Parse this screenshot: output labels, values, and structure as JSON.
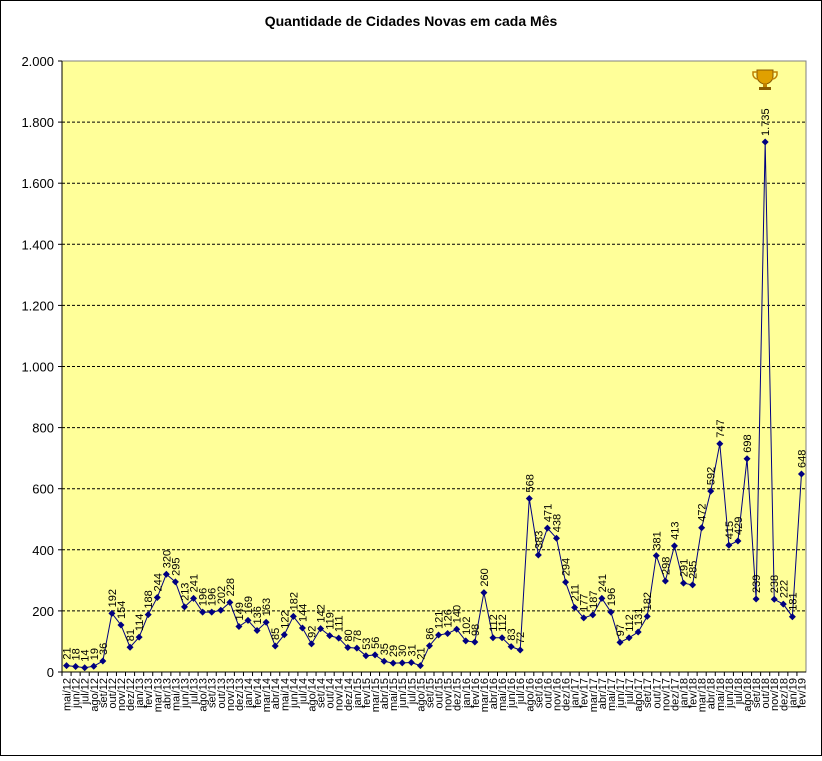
{
  "chart_data": {
    "type": "line",
    "title": "Quantidade de Cidades Novas em cada Mês",
    "categories": [
      "mai/12",
      "jun/12",
      "jul/12",
      "ago/12",
      "set/12",
      "out/12",
      "nov/12",
      "dez/12",
      "jan/13",
      "fev/13",
      "mar/13",
      "abr/13",
      "mai/13",
      "jun/13",
      "jul/13",
      "ago/13",
      "set/13",
      "out/13",
      "nov/13",
      "dez/13",
      "jan/14",
      "fev/14",
      "mar/14",
      "abr/14",
      "mai/14",
      "jun/14",
      "jul/14",
      "ago/14",
      "set/14",
      "out/14",
      "nov/14",
      "dez/14",
      "jan/15",
      "fev/15",
      "mar/15",
      "abr/15",
      "mai/15",
      "jun/15",
      "jul/15",
      "ago/15",
      "set/15",
      "out/15",
      "nov/15",
      "dez/15",
      "jan/16",
      "fev/16",
      "mar/16",
      "abr/16",
      "mai/16",
      "jun/16",
      "jul/16",
      "ago/16",
      "set/16",
      "out/16",
      "nov/16",
      "dez/16",
      "jan/17",
      "fev/17",
      "mar/17",
      "abr/17",
      "mai/17",
      "jun/17",
      "jul/17",
      "ago/17",
      "set/17",
      "out/17",
      "nov/17",
      "dez/17",
      "jan/18",
      "fev/18",
      "mar/18",
      "abr/18",
      "mai/18",
      "jun/18",
      "jul/18",
      "ago/18",
      "set/18",
      "out/18",
      "nov/18",
      "dez/18",
      "jan/19",
      "fev/19"
    ],
    "series": [
      {
        "color": "#000080",
        "values": [
          21,
          18,
          14,
          19,
          36,
          192,
          154,
          81,
          114,
          188,
          244,
          320,
          295,
          213,
          241,
          196,
          196,
          202,
          228,
          149,
          169,
          136,
          163,
          85,
          122,
          182,
          144,
          92,
          142,
          119,
          111,
          80,
          78,
          53,
          56,
          35,
          29,
          30,
          31,
          21,
          86,
          121,
          126,
          140,
          102,
          98,
          260,
          112,
          112,
          83,
          72,
          568,
          383,
          471,
          438,
          294,
          211,
          177,
          187,
          241,
          196,
          97,
          112,
          131,
          182,
          381,
          298,
          413,
          291,
          285,
          472,
          592,
          747,
          415,
          429,
          698,
          239,
          1735,
          238,
          222,
          181,
          648
        ],
        "value_labels": [
          "21",
          "18",
          "14",
          "19",
          "36",
          "192",
          "154",
          "81",
          "114",
          "188",
          "244",
          "320",
          "295",
          "213",
          "241",
          "196",
          "196",
          "202",
          "228",
          "149",
          "169",
          "136",
          "163",
          "85",
          "122",
          "182",
          "144",
          "92",
          "142",
          "119",
          "111",
          "80",
          "78",
          "53",
          "56",
          "35",
          "29",
          "30",
          "31",
          "21",
          "86",
          "121",
          "126",
          "140",
          "102",
          "98",
          "260",
          "112",
          "112",
          "83",
          "72",
          "568",
          "383",
          "471",
          "438",
          "294",
          "211",
          "177",
          "187",
          "241",
          "196",
          "97",
          "112",
          "131",
          "182",
          "381",
          "298",
          "413",
          "291",
          "285",
          "472",
          "592",
          "747",
          "415",
          "429",
          "698",
          "239",
          "1.735",
          "238",
          "222",
          "181",
          "648"
        ]
      }
    ],
    "ylim": [
      0,
      2000
    ],
    "yticks": [
      0,
      200,
      400,
      600,
      800,
      {
        "value": 1000,
        "label": "1.000"
      },
      {
        "value": 1200,
        "label": "1.200"
      },
      {
        "value": 1400,
        "label": "1.400"
      },
      {
        "value": 1600,
        "label": "1.600"
      },
      {
        "value": 1800,
        "label": "1.800"
      },
      {
        "value": 2000,
        "label": "2.000"
      }
    ],
    "grid": true
  }
}
